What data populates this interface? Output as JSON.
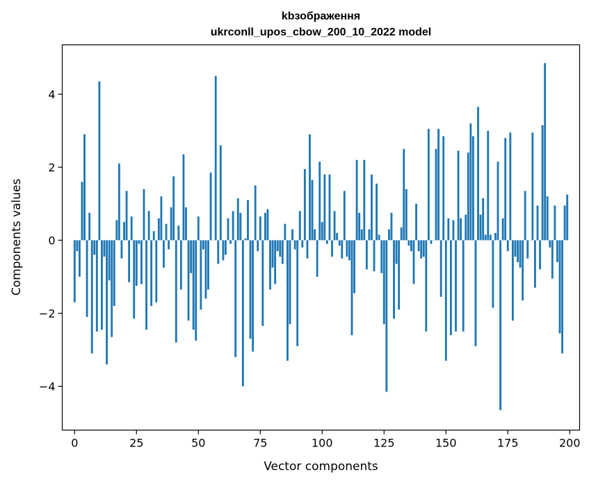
{
  "chart_data": {
    "type": "bar",
    "title": "kbзображення",
    "subtitle": "ukrconll_upos_cbow_200_10_2022 model",
    "xlabel": "Vector components",
    "ylabel": "Components values",
    "xlim": [
      -5,
      204
    ],
    "ylim": [
      -5.2,
      5.35
    ],
    "xticks": [
      0,
      25,
      50,
      75,
      100,
      125,
      150,
      175,
      200
    ],
    "xtick_labels": [
      "0",
      "25",
      "50",
      "75",
      "100",
      "125",
      "150",
      "175",
      "200"
    ],
    "yticks": [
      -4,
      -2,
      0,
      2,
      4
    ],
    "ytick_labels": [
      "−4",
      "−2",
      "0",
      "2",
      "4"
    ],
    "grid": false,
    "bar_color": "#1f77b4",
    "x": [
      0,
      1,
      2,
      3,
      4,
      5,
      6,
      7,
      8,
      9,
      10,
      11,
      12,
      13,
      14,
      15,
      16,
      17,
      18,
      19,
      20,
      21,
      22,
      23,
      24,
      25,
      26,
      27,
      28,
      29,
      30,
      31,
      32,
      33,
      34,
      35,
      36,
      37,
      38,
      39,
      40,
      41,
      42,
      43,
      44,
      45,
      46,
      47,
      48,
      49,
      50,
      51,
      52,
      53,
      54,
      55,
      56,
      57,
      58,
      59,
      60,
      61,
      62,
      63,
      64,
      65,
      66,
      67,
      68,
      69,
      70,
      71,
      72,
      73,
      74,
      75,
      76,
      77,
      78,
      79,
      80,
      81,
      82,
      83,
      84,
      85,
      86,
      87,
      88,
      89,
      90,
      91,
      92,
      93,
      94,
      95,
      96,
      97,
      98,
      99,
      100,
      101,
      102,
      103,
      104,
      105,
      106,
      107,
      108,
      109,
      110,
      111,
      112,
      113,
      114,
      115,
      116,
      117,
      118,
      119,
      120,
      121,
      122,
      123,
      124,
      125,
      126,
      127,
      128,
      129,
      130,
      131,
      132,
      133,
      134,
      135,
      136,
      137,
      138,
      139,
      140,
      141,
      142,
      143,
      144,
      145,
      146,
      147,
      148,
      149,
      150,
      151,
      152,
      153,
      154,
      155,
      156,
      157,
      158,
      159,
      160,
      161,
      162,
      163,
      164,
      165,
      166,
      167,
      168,
      169,
      170,
      171,
      172,
      173,
      174,
      175,
      176,
      177,
      178,
      179,
      180,
      181,
      182,
      183,
      184,
      185,
      186,
      187,
      188,
      189,
      190,
      191,
      192,
      193,
      194,
      195,
      196,
      197,
      198,
      199
    ],
    "values": [
      -1.7,
      -0.3,
      -1.0,
      1.6,
      2.9,
      -2.1,
      0.75,
      -3.1,
      -0.4,
      -2.5,
      4.35,
      -2.45,
      -0.45,
      -3.4,
      -1.1,
      -2.65,
      -1.8,
      0.55,
      2.1,
      -0.5,
      0.5,
      1.35,
      -1.15,
      0.65,
      -2.15,
      -1.25,
      -0.1,
      -1.2,
      1.4,
      -2.45,
      0.8,
      -1.8,
      0.25,
      -1.7,
      0.6,
      1.2,
      -0.75,
      0.45,
      -0.25,
      0.9,
      1.75,
      -2.8,
      0.4,
      -1.35,
      2.35,
      0.9,
      -2.2,
      -0.9,
      -2.45,
      -2.75,
      0.65,
      -1.9,
      -0.25,
      -1.6,
      -1.35,
      1.85,
      0.0,
      4.5,
      -0.65,
      2.6,
      -0.55,
      -0.4,
      0.6,
      -0.1,
      0.8,
      -3.2,
      1.15,
      0.75,
      -4.0,
      0.05,
      1.1,
      -2.7,
      -3.05,
      1.5,
      -0.3,
      0.65,
      -2.35,
      0.75,
      0.85,
      -1.35,
      -0.75,
      -1.2,
      -0.3,
      -0.45,
      -0.65,
      0.45,
      -3.3,
      -2.3,
      0.3,
      -0.25,
      -2.9,
      0.8,
      -0.2,
      1.95,
      -0.5,
      2.9,
      1.65,
      0.3,
      -1.0,
      2.15,
      0.5,
      1.8,
      -0.1,
      1.8,
      -0.45,
      0.8,
      0.2,
      -0.15,
      -0.5,
      1.35,
      -0.45,
      -0.55,
      -2.6,
      -1.45,
      2.2,
      0.75,
      0.3,
      2.2,
      -0.8,
      0.3,
      1.8,
      -0.85,
      1.55,
      0.15,
      -0.9,
      -2.3,
      -4.15,
      0.3,
      0.75,
      -2.15,
      -0.65,
      -1.9,
      0.35,
      2.5,
      1.4,
      -0.15,
      -0.3,
      -1.2,
      1.0,
      -0.3,
      -0.5,
      -0.45,
      -2.5,
      3.05,
      -0.1,
      0.0,
      2.5,
      3.05,
      -1.55,
      2.85,
      -3.3,
      0.6,
      -2.6,
      0.55,
      -2.5,
      2.45,
      0.6,
      -2.5,
      0.7,
      2.4,
      3.2,
      2.85,
      -2.9,
      3.65,
      0.7,
      1.15,
      0.15,
      3.0,
      0.15,
      -1.85,
      0.2,
      2.15,
      -4.65,
      0.6,
      2.8,
      -0.3,
      2.95,
      -2.2,
      -0.45,
      -0.6,
      -0.75,
      -1.65,
      1.35,
      -0.5,
      0.0,
      2.95,
      -1.3,
      0.95,
      -0.8,
      3.15,
      4.85,
      1.2,
      -0.2,
      -1.05,
      0.95,
      -0.6,
      -2.55,
      -3.1,
      0.95,
      1.25
    ]
  }
}
